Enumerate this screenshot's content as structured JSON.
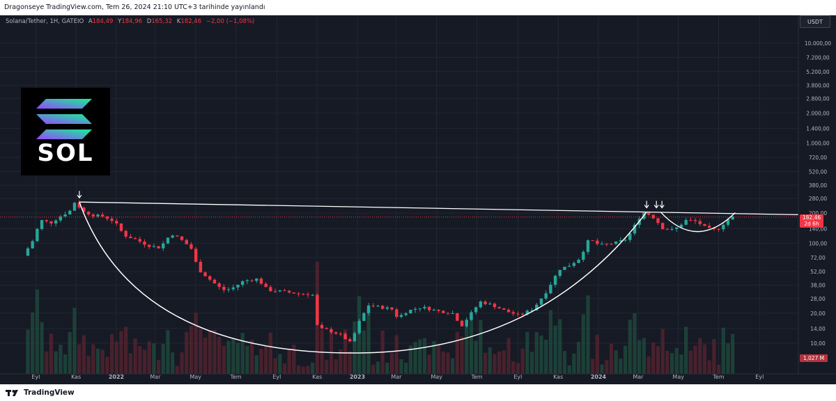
{
  "header": {
    "publish_text": "Dragonseye TradingView.com, Tem 26, 2024 21:10 UTC+3 tarihinde yayınlandı"
  },
  "legend": {
    "symbol": "Solana/Tether, 1H, GATEIO",
    "a_label": "A",
    "a_value": "184,49",
    "y_label": "Y",
    "y_value": "184,96",
    "d_label": "D",
    "d_value": "165,32",
    "k_label": "K",
    "k_value": "182,46",
    "change": "−2,00 (−1,08%)"
  },
  "currency_button": "USDT",
  "logo": {
    "text": "SOL"
  },
  "price_label": {
    "value": "182,46",
    "countdown": "2d 6h"
  },
  "volume_label": "1,027 M",
  "footer": {
    "brand": "TradingView"
  },
  "colors": {
    "background": "#161a25",
    "up": "#26a69a",
    "down": "#f23645",
    "grid": "#232632",
    "pattern_lines": "#ffffff"
  },
  "chart_data": {
    "type": "candlestick",
    "title": "",
    "scale": "log",
    "grid": true,
    "y_ticks": [
      "10.000,00",
      "7.200,00",
      "5.200,00",
      "3.800,00",
      "2.800,00",
      "2.000,00",
      "1.400,00",
      "1.000,00",
      "720,00",
      "520,00",
      "380,00",
      "280,00",
      "200,00",
      "140,00",
      "100,00",
      "72,00",
      "52,00",
      "38,00",
      "28,00",
      "20,00",
      "14,00",
      "10,00"
    ],
    "x_ticks": [
      "Eyl",
      "Kas",
      "2022",
      "Mar",
      "May",
      "Tem",
      "Eyl",
      "Kas",
      "2023",
      "Mar",
      "May",
      "Tem",
      "Eyl",
      "Kas",
      "2024",
      "Mar",
      "May",
      "Tem",
      "Eyl"
    ],
    "price_series": [
      {
        "date": "2021-08-20",
        "close": 75
      },
      {
        "date": "2021-09-05",
        "close": 110
      },
      {
        "date": "2021-09-15",
        "close": 170
      },
      {
        "date": "2021-10-01",
        "close": 160
      },
      {
        "date": "2021-10-15",
        "close": 185
      },
      {
        "date": "2021-11-01",
        "close": 215
      },
      {
        "date": "2021-11-06",
        "close": 258
      },
      {
        "date": "2021-11-20",
        "close": 205
      },
      {
        "date": "2021-12-05",
        "close": 190
      },
      {
        "date": "2021-12-20",
        "close": 185
      },
      {
        "date": "2022-01-05",
        "close": 165
      },
      {
        "date": "2022-01-20",
        "close": 120
      },
      {
        "date": "2022-02-05",
        "close": 110
      },
      {
        "date": "2022-02-25",
        "close": 95
      },
      {
        "date": "2022-03-15",
        "close": 90
      },
      {
        "date": "2022-04-01",
        "close": 125
      },
      {
        "date": "2022-04-15",
        "close": 110
      },
      {
        "date": "2022-05-01",
        "close": 90
      },
      {
        "date": "2022-05-12",
        "close": 55
      },
      {
        "date": "2022-06-01",
        "close": 42
      },
      {
        "date": "2022-06-18",
        "close": 34
      },
      {
        "date": "2022-07-01",
        "close": 35
      },
      {
        "date": "2022-07-20",
        "close": 42
      },
      {
        "date": "2022-08-10",
        "close": 44
      },
      {
        "date": "2022-08-25",
        "close": 34
      },
      {
        "date": "2022-09-15",
        "close": 33
      },
      {
        "date": "2022-10-15",
        "close": 31
      },
      {
        "date": "2022-11-01",
        "close": 31
      },
      {
        "date": "2022-11-09",
        "close": 14
      },
      {
        "date": "2022-11-25",
        "close": 13.5
      },
      {
        "date": "2022-12-15",
        "close": 12
      },
      {
        "date": "2022-12-29",
        "close": 10
      },
      {
        "date": "2023-01-10",
        "close": 16
      },
      {
        "date": "2023-01-25",
        "close": 24
      },
      {
        "date": "2023-02-10",
        "close": 23
      },
      {
        "date": "2023-03-01",
        "close": 22
      },
      {
        "date": "2023-03-10",
        "close": 18
      },
      {
        "date": "2023-03-25",
        "close": 21
      },
      {
        "date": "2023-04-15",
        "close": 23
      },
      {
        "date": "2023-05-10",
        "close": 21
      },
      {
        "date": "2023-06-01",
        "close": 20
      },
      {
        "date": "2023-06-15",
        "close": 15
      },
      {
        "date": "2023-07-13",
        "close": 26
      },
      {
        "date": "2023-08-01",
        "close": 24
      },
      {
        "date": "2023-08-20",
        "close": 21
      },
      {
        "date": "2023-09-10",
        "close": 19
      },
      {
        "date": "2023-10-01",
        "close": 22
      },
      {
        "date": "2023-10-20",
        "close": 32
      },
      {
        "date": "2023-11-10",
        "close": 55
      },
      {
        "date": "2023-11-25",
        "close": 60
      },
      {
        "date": "2023-12-10",
        "close": 70
      },
      {
        "date": "2023-12-25",
        "close": 110
      },
      {
        "date": "2024-01-10",
        "close": 95
      },
      {
        "date": "2024-02-01",
        "close": 100
      },
      {
        "date": "2024-02-20",
        "close": 110
      },
      {
        "date": "2024-03-10",
        "close": 180
      },
      {
        "date": "2024-03-18",
        "close": 205
      },
      {
        "date": "2024-04-01",
        "close": 180
      },
      {
        "date": "2024-04-15",
        "close": 140
      },
      {
        "date": "2024-05-01",
        "close": 135
      },
      {
        "date": "2024-05-20",
        "close": 170
      },
      {
        "date": "2024-06-05",
        "close": 165
      },
      {
        "date": "2024-06-20",
        "close": 140
      },
      {
        "date": "2024-07-05",
        "close": 135
      },
      {
        "date": "2024-07-26",
        "close": 182.46
      }
    ]
  }
}
